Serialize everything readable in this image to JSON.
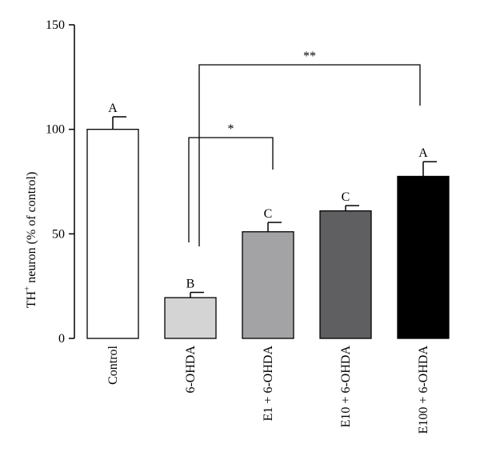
{
  "chart_data": {
    "type": "bar",
    "categories": [
      "Control",
      "6-OHDA",
      "E1 + 6-OHDA",
      "E10 + 6-OHDA",
      "E100 + 6-OHDA"
    ],
    "values": [
      100,
      19.5,
      51,
      61,
      77.5
    ],
    "errors": [
      6,
      2.5,
      4.5,
      2.5,
      7
    ],
    "letters": [
      "A",
      "B",
      "C",
      "C",
      "A"
    ],
    "colors": [
      "#ffffff",
      "#d4d4d4",
      "#a3a3a6",
      "#5f5f61",
      "#000000"
    ],
    "ylabel_main": "TH",
    "ylabel_sup": "+",
    "ylabel_rest": " neuron (% of control)",
    "ylim": [
      0,
      150
    ],
    "yticks": [
      "0",
      "50",
      "100",
      "150"
    ],
    "grid": false,
    "significance": [
      {
        "from": "6-OHDA",
        "to": "E1 + 6-OHDA",
        "label": "*"
      },
      {
        "from": "6-OHDA",
        "to": "E100 + 6-OHDA",
        "label": "**"
      }
    ]
  }
}
